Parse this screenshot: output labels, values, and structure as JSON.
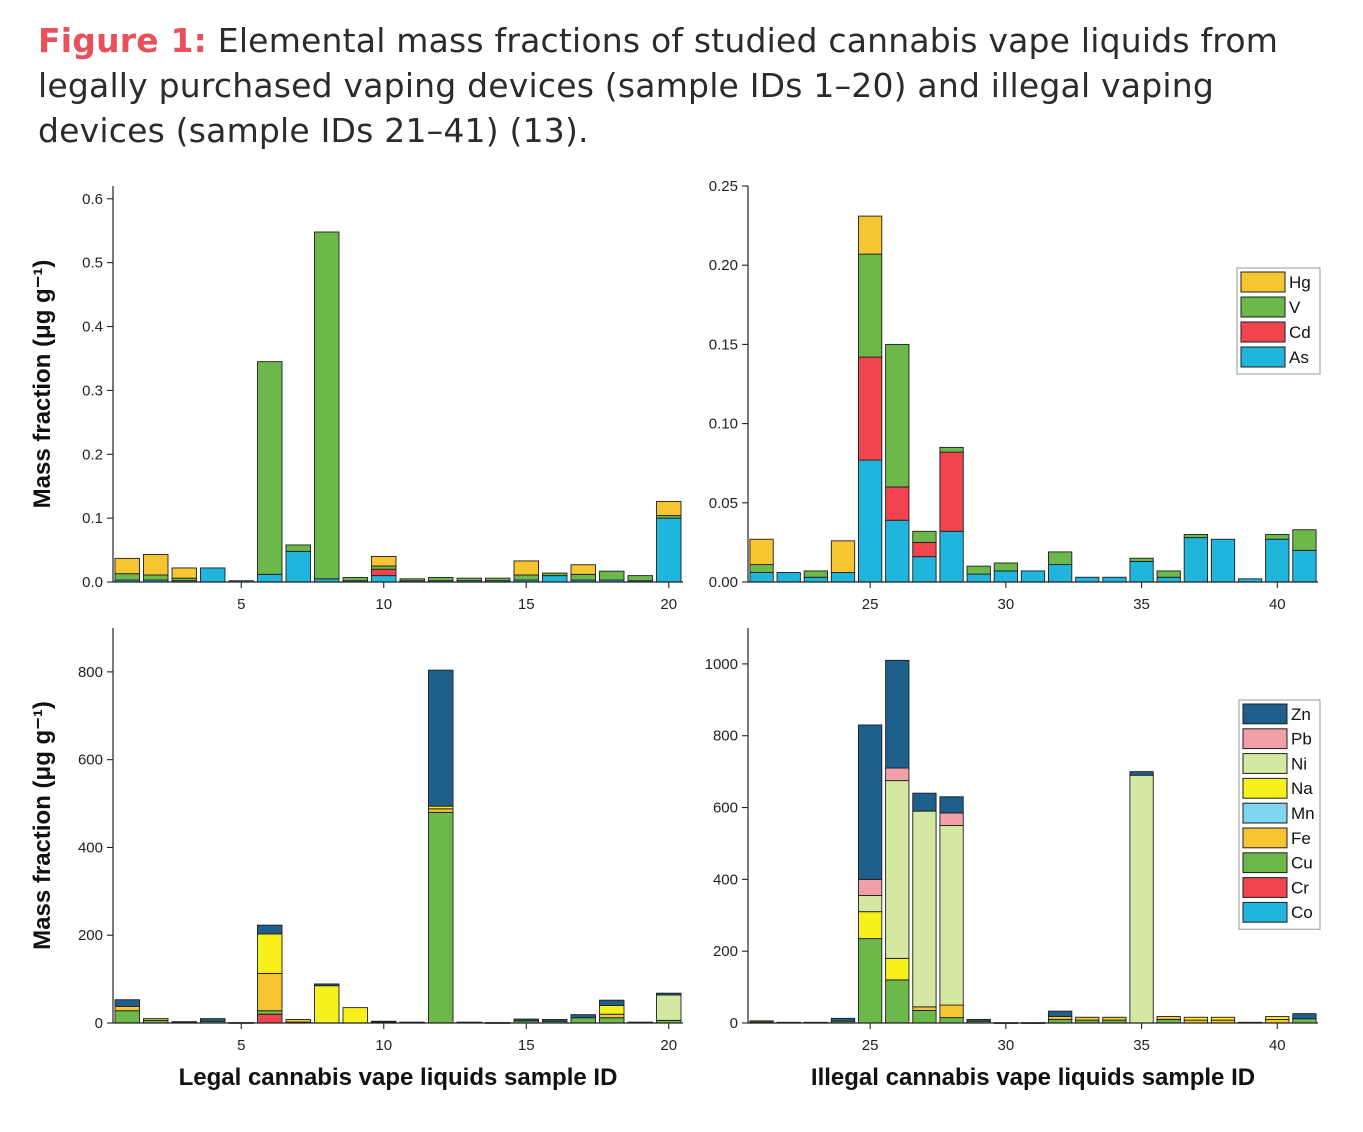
{
  "caption": {
    "lead": "Figure 1:",
    "text": " Elemental mass fractions of studied cannabis vape liquids from legally purchased vaping devices (sample IDs 1–20) and illegal vaping devices (sample IDs 21–41) (13)."
  },
  "colors": {
    "Hg": "#f7c531",
    "V": "#6cb84a",
    "Cd": "#f0444e",
    "As": "#1fb5dc",
    "Zn": "#1f5f8b",
    "Pb": "#f2a0a8",
    "Ni": "#d4e8a2",
    "Na": "#f7f01a",
    "Mn": "#7fd6ee",
    "Fe": "#f7c531",
    "Cu": "#6cb84a",
    "Cr": "#f0444e",
    "Co": "#1fb5dc"
  },
  "chart_data": [
    {
      "id": "top-left",
      "type": "bar",
      "stacked": true,
      "ylabel": "Mass fraction (μg g⁻¹)",
      "xlabel": "",
      "xlim": [
        0.5,
        20.5
      ],
      "xticks": [
        "5",
        "10",
        "15",
        "20"
      ],
      "ylim": [
        0,
        0.62
      ],
      "yticks": [
        "0.0",
        "0.1",
        "0.2",
        "0.3",
        "0.4",
        "0.5",
        "0.6"
      ],
      "series_order": [
        "As",
        "Cd",
        "V",
        "Hg"
      ],
      "bars": [
        {
          "id": 1,
          "As": 0.003,
          "Cd": 0.0,
          "V": 0.01,
          "Hg": 0.024
        },
        {
          "id": 2,
          "As": 0.003,
          "Cd": 0.0,
          "V": 0.008,
          "Hg": 0.032
        },
        {
          "id": 3,
          "As": 0.002,
          "Cd": 0.0,
          "V": 0.004,
          "Hg": 0.016
        },
        {
          "id": 4,
          "As": 0.022,
          "Cd": 0.0,
          "V": 0.0,
          "Hg": 0.0
        },
        {
          "id": 5,
          "As": 0.002,
          "Cd": 0.0,
          "V": 0.0,
          "Hg": 0.0
        },
        {
          "id": 6,
          "As": 0.012,
          "Cd": 0.0,
          "V": 0.333,
          "Hg": 0.0
        },
        {
          "id": 7,
          "As": 0.048,
          "Cd": 0.0,
          "V": 0.01,
          "Hg": 0.0
        },
        {
          "id": 8,
          "As": 0.005,
          "Cd": 0.0,
          "V": 0.543,
          "Hg": 0.0
        },
        {
          "id": 9,
          "As": 0.002,
          "Cd": 0.0,
          "V": 0.005,
          "Hg": 0.0
        },
        {
          "id": 10,
          "As": 0.01,
          "Cd": 0.01,
          "V": 0.005,
          "Hg": 0.015
        },
        {
          "id": 11,
          "As": 0.002,
          "Cd": 0.0,
          "V": 0.003,
          "Hg": 0.0
        },
        {
          "id": 12,
          "As": 0.002,
          "Cd": 0.0,
          "V": 0.005,
          "Hg": 0.0
        },
        {
          "id": 13,
          "As": 0.002,
          "Cd": 0.0,
          "V": 0.004,
          "Hg": 0.0
        },
        {
          "id": 14,
          "As": 0.002,
          "Cd": 0.0,
          "V": 0.004,
          "Hg": 0.0
        },
        {
          "id": 15,
          "As": 0.003,
          "Cd": 0.0,
          "V": 0.008,
          "Hg": 0.022
        },
        {
          "id": 16,
          "As": 0.01,
          "Cd": 0.0,
          "V": 0.004,
          "Hg": 0.0
        },
        {
          "id": 17,
          "As": 0.003,
          "Cd": 0.0,
          "V": 0.009,
          "Hg": 0.015
        },
        {
          "id": 18,
          "As": 0.003,
          "Cd": 0.0,
          "V": 0.014,
          "Hg": 0.0
        },
        {
          "id": 19,
          "As": 0.002,
          "Cd": 0.0,
          "V": 0.008,
          "Hg": 0.0
        },
        {
          "id": 20,
          "As": 0.1,
          "Cd": 0.0,
          "V": 0.004,
          "Hg": 0.022
        }
      ]
    },
    {
      "id": "top-right",
      "type": "bar",
      "stacked": true,
      "ylabel": "",
      "xlabel": "",
      "xlim": [
        20.5,
        41.5
      ],
      "xticks": [
        "25",
        "30",
        "35",
        "40"
      ],
      "ylim": [
        0,
        0.25
      ],
      "yticks": [
        "0.00",
        "0.05",
        "0.10",
        "0.15",
        "0.20",
        "0.25"
      ],
      "series_order": [
        "As",
        "Cd",
        "V",
        "Hg"
      ],
      "legend": {
        "placement": "top-right",
        "items": [
          "Hg",
          "V",
          "Cd",
          "As"
        ]
      },
      "bars": [
        {
          "id": 21,
          "As": 0.006,
          "Cd": 0.0,
          "V": 0.005,
          "Hg": 0.016
        },
        {
          "id": 22,
          "As": 0.006,
          "Cd": 0.0,
          "V": 0.0,
          "Hg": 0.0
        },
        {
          "id": 23,
          "As": 0.003,
          "Cd": 0.0,
          "V": 0.004,
          "Hg": 0.0
        },
        {
          "id": 24,
          "As": 0.006,
          "Cd": 0.0,
          "V": 0.0,
          "Hg": 0.02
        },
        {
          "id": 25,
          "As": 0.077,
          "Cd": 0.065,
          "V": 0.065,
          "Hg": 0.024
        },
        {
          "id": 26,
          "As": 0.039,
          "Cd": 0.021,
          "V": 0.09,
          "Hg": 0.0
        },
        {
          "id": 27,
          "As": 0.016,
          "Cd": 0.009,
          "V": 0.007,
          "Hg": 0.0
        },
        {
          "id": 28,
          "As": 0.032,
          "Cd": 0.05,
          "V": 0.003,
          "Hg": 0.0
        },
        {
          "id": 29,
          "As": 0.005,
          "Cd": 0.0,
          "V": 0.005,
          "Hg": 0.0
        },
        {
          "id": 30,
          "As": 0.007,
          "Cd": 0.0,
          "V": 0.005,
          "Hg": 0.0
        },
        {
          "id": 31,
          "As": 0.007,
          "Cd": 0.0,
          "V": 0.0,
          "Hg": 0.0
        },
        {
          "id": 32,
          "As": 0.011,
          "Cd": 0.0,
          "V": 0.008,
          "Hg": 0.0
        },
        {
          "id": 33,
          "As": 0.003,
          "Cd": 0.0,
          "V": 0.0,
          "Hg": 0.0
        },
        {
          "id": 34,
          "As": 0.003,
          "Cd": 0.0,
          "V": 0.0,
          "Hg": 0.0
        },
        {
          "id": 35,
          "As": 0.013,
          "Cd": 0.0,
          "V": 0.002,
          "Hg": 0.0
        },
        {
          "id": 36,
          "As": 0.003,
          "Cd": 0.0,
          "V": 0.004,
          "Hg": 0.0
        },
        {
          "id": 37,
          "As": 0.028,
          "Cd": 0.0,
          "V": 0.002,
          "Hg": 0.0
        },
        {
          "id": 38,
          "As": 0.027,
          "Cd": 0.0,
          "V": 0.0,
          "Hg": 0.0
        },
        {
          "id": 39,
          "As": 0.002,
          "Cd": 0.0,
          "V": 0.0,
          "Hg": 0.0
        },
        {
          "id": 40,
          "As": 0.027,
          "Cd": 0.0,
          "V": 0.003,
          "Hg": 0.0
        },
        {
          "id": 41,
          "As": 0.02,
          "Cd": 0.0,
          "V": 0.013,
          "Hg": 0.0
        }
      ]
    },
    {
      "id": "bottom-left",
      "type": "bar",
      "stacked": true,
      "ylabel": "Mass fraction (μg g⁻¹)",
      "xlabel": "Legal cannabis vape liquids sample ID",
      "xlim": [
        0.5,
        20.5
      ],
      "xticks": [
        "5",
        "10",
        "15",
        "20"
      ],
      "ylim": [
        0,
        900
      ],
      "yticks": [
        "0",
        "200",
        "400",
        "600",
        "800"
      ],
      "series_order": [
        "Co",
        "Cr",
        "Cu",
        "Fe",
        "Mn",
        "Na",
        "Ni",
        "Pb",
        "Zn"
      ],
      "bars": [
        {
          "id": 1,
          "Cu": 28,
          "Fe": 10,
          "Zn": 15
        },
        {
          "id": 2,
          "Cu": 6,
          "Fe": 4
        },
        {
          "id": 3,
          "Cu": 2,
          "Fe": 1
        },
        {
          "id": 4,
          "Cu": 4,
          "Zn": 6
        },
        {
          "id": 5,
          "Cu": 1
        },
        {
          "id": 6,
          "Cr": 20,
          "Fe": 85,
          "Na": 90,
          "Cu": 8,
          "Zn": 20
        },
        {
          "id": 7,
          "Fe": 6,
          "Cu": 2
        },
        {
          "id": 8,
          "Na": 85,
          "Zn": 4
        },
        {
          "id": 9,
          "Na": 35
        },
        {
          "id": 10,
          "Cu": 2,
          "Fe": 2
        },
        {
          "id": 11,
          "Cu": 2
        },
        {
          "id": 12,
          "Cu": 480,
          "Fe": 8,
          "Na": 6,
          "Zn": 310
        },
        {
          "id": 13,
          "Cu": 2
        },
        {
          "id": 14,
          "Cu": 1
        },
        {
          "id": 15,
          "Cu": 5,
          "Zn": 4
        },
        {
          "id": 16,
          "Cu": 4,
          "Zn": 4
        },
        {
          "id": 17,
          "Cu": 12,
          "Zn": 7
        },
        {
          "id": 18,
          "Cu": 12,
          "Fe": 8,
          "Na": 20,
          "Zn": 12
        },
        {
          "id": 19,
          "Cu": 2
        },
        {
          "id": 20,
          "Cu": 6,
          "Ni": 58,
          "Zn": 4
        }
      ]
    },
    {
      "id": "bottom-right",
      "type": "bar",
      "stacked": true,
      "ylabel": "",
      "xlabel": "Illegal cannabis vape liquids sample ID",
      "xlim": [
        20.5,
        41.5
      ],
      "xticks": [
        "25",
        "30",
        "35",
        "40"
      ],
      "ylim": [
        0,
        1100
      ],
      "yticks": [
        "0",
        "200",
        "400",
        "600",
        "800",
        "1000"
      ],
      "series_order": [
        "Co",
        "Cr",
        "Cu",
        "Fe",
        "Mn",
        "Na",
        "Ni",
        "Pb",
        "Zn"
      ],
      "legend": {
        "placement": "right",
        "items": [
          "Zn",
          "Pb",
          "Ni",
          "Na",
          "Mn",
          "Fe",
          "Cu",
          "Cr",
          "Co"
        ]
      },
      "bars": [
        {
          "id": 21,
          "Cu": 3,
          "Fe": 3
        },
        {
          "id": 22,
          "Cu": 2
        },
        {
          "id": 23,
          "Cu": 2
        },
        {
          "id": 24,
          "Cu": 5,
          "Zn": 8
        },
        {
          "id": 25,
          "Cu": 235,
          "Na": 75,
          "Ni": 45,
          "Pb": 45,
          "Zn": 430
        },
        {
          "id": 26,
          "Cu": 120,
          "Na": 60,
          "Ni": 495,
          "Pb": 35,
          "Zn": 300
        },
        {
          "id": 27,
          "Cu": 35,
          "Fe": 10,
          "Ni": 545,
          "Zn": 50
        },
        {
          "id": 28,
          "Cu": 15,
          "Fe": 35,
          "Ni": 500,
          "Pb": 35,
          "Zn": 45
        },
        {
          "id": 29,
          "Cu": 5,
          "Zn": 5
        },
        {
          "id": 30,
          "Cu": 1
        },
        {
          "id": 31,
          "Cu": 1
        },
        {
          "id": 32,
          "Cu": 10,
          "Fe": 8,
          "Zn": 15
        },
        {
          "id": 33,
          "Cu": 8,
          "Fe": 8
        },
        {
          "id": 34,
          "Cu": 8,
          "Fe": 8
        },
        {
          "id": 35,
          "Ni": 690,
          "Zn": 10
        },
        {
          "id": 36,
          "Cu": 10,
          "Fe": 8
        },
        {
          "id": 37,
          "Fe": 8,
          "Na": 8
        },
        {
          "id": 38,
          "Fe": 8,
          "Na": 8
        },
        {
          "id": 39,
          "Cu": 2
        },
        {
          "id": 40,
          "Fe": 10,
          "Na": 8
        },
        {
          "id": 41,
          "Cu": 12,
          "Zn": 14
        }
      ]
    }
  ]
}
